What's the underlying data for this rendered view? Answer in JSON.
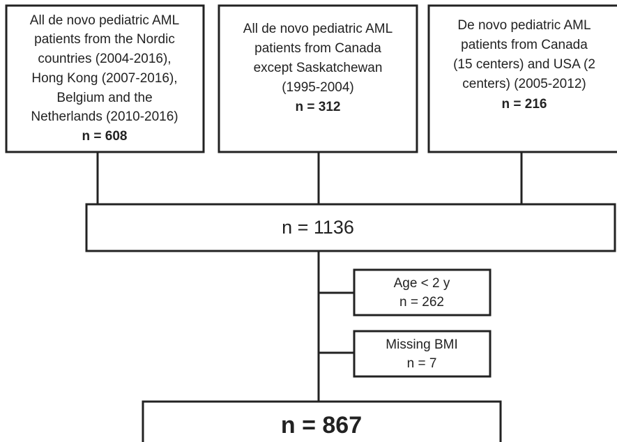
{
  "nodes": [
    {
      "lines": [
        "All de novo pediatric AML",
        "patients from the Nordic",
        "countries (2004-2016),",
        "Hong Kong (2007-2016),",
        "Belgium and the",
        "Netherlands (2010-2016)"
      ],
      "count": "n = 608"
    },
    {
      "lines": [
        "All de novo pediatric AML",
        "patients from Canada",
        "except Saskatchewan",
        "(1995-2004)"
      ],
      "count": "n = 312"
    },
    {
      "lines": [
        "De novo pediatric AML",
        "patients from Canada",
        "(15 centers) and USA (2",
        "centers) (2005-2012)"
      ],
      "count": "n = 216"
    },
    {
      "lines": [],
      "count": "n = 1136"
    },
    {
      "lines": [
        "Age < 2 y"
      ],
      "count": "n = 262"
    },
    {
      "lines": [
        "Missing BMI"
      ],
      "count": "n = 7"
    },
    {
      "lines": [],
      "count": "n = 867"
    }
  ]
}
